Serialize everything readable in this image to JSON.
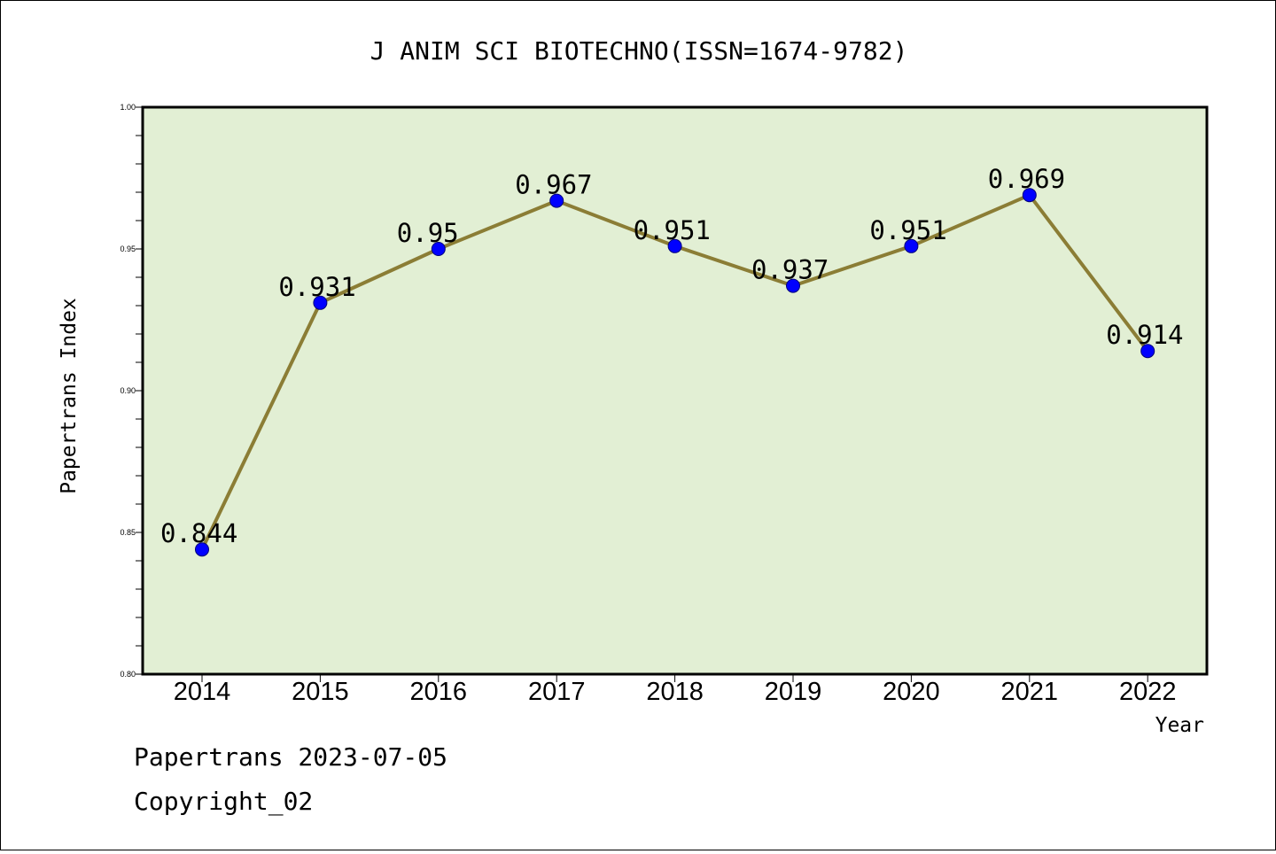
{
  "chart_data": {
    "type": "line",
    "title": "J ANIM SCI BIOTECHNO(ISSN=1674-9782)",
    "xlabel": "Year",
    "ylabel": "Papertrans Index",
    "x": [
      "2014",
      "2015",
      "2016",
      "2017",
      "2018",
      "2019",
      "2020",
      "2021",
      "2022"
    ],
    "series": [
      {
        "values": [
          0.844,
          0.931,
          0.95,
          0.967,
          0.951,
          0.937,
          0.951,
          0.969,
          0.914
        ],
        "labels": [
          "0.844",
          "0.931",
          "0.95",
          "0.967",
          "0.951",
          "0.937",
          "0.951",
          "0.969",
          "0.914"
        ]
      }
    ],
    "ylim": [
      0.8,
      1.0
    ],
    "yticks": [
      "0.80",
      "0.85",
      "0.90",
      "0.95",
      "1.00"
    ],
    "grid": false,
    "colors": {
      "plot_background": "#e2efd4",
      "line": "#8b7d35",
      "marker": "#0000ff"
    }
  },
  "footer": {
    "line1": "Papertrans 2023-07-05",
    "line2": "Copyright_02"
  }
}
